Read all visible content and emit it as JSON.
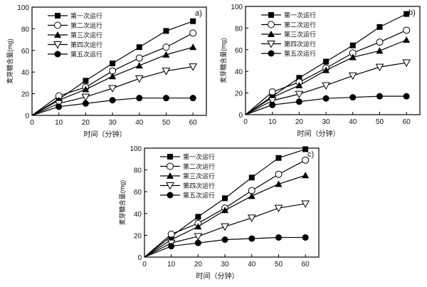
{
  "chart_data": [
    {
      "type": "line",
      "panel_label": "a)",
      "xlabel": "时间（分钟）",
      "ylabel": "麦芽糖含量(mg)",
      "xlim": [
        0,
        65
      ],
      "ylim": [
        0,
        100
      ],
      "xticks": [
        0,
        10,
        20,
        30,
        40,
        50,
        60
      ],
      "yticks": [
        0,
        20,
        40,
        60,
        80,
        100
      ],
      "legend_position": "top-left",
      "x": [
        0,
        10,
        20,
        30,
        40,
        50,
        60
      ],
      "series": [
        {
          "name": "第一次运行",
          "marker": "filled-square",
          "values": [
            0,
            15,
            32,
            48,
            63,
            78,
            87
          ]
        },
        {
          "name": "第二次运行",
          "marker": "open-circle",
          "values": [
            0,
            18,
            26,
            41,
            53,
            63,
            76
          ]
        },
        {
          "name": "第三次运行",
          "marker": "filled-triangle-up",
          "values": [
            0,
            14,
            24,
            36,
            46,
            56,
            63
          ]
        },
        {
          "name": "第四次运行",
          "marker": "open-triangle-down",
          "values": [
            0,
            11,
            17,
            25,
            34,
            41,
            45
          ]
        },
        {
          "name": "第五次运行",
          "marker": "filled-circle",
          "values": [
            0,
            8,
            11,
            14,
            16,
            16,
            16
          ]
        }
      ]
    },
    {
      "type": "line",
      "panel_label": "b)",
      "xlabel": "时间（分钟）",
      "ylabel": "麦芽糖含量(mg)",
      "xlim": [
        0,
        65
      ],
      "ylim": [
        0,
        100
      ],
      "xticks": [
        0,
        10,
        20,
        30,
        40,
        50,
        60
      ],
      "yticks": [
        0,
        20,
        40,
        60,
        80,
        100
      ],
      "legend_position": "top-left",
      "x": [
        0,
        10,
        20,
        30,
        40,
        50,
        60
      ],
      "series": [
        {
          "name": "第一次运行",
          "marker": "filled-square",
          "values": [
            0,
            17,
            34,
            49,
            64,
            81,
            93
          ]
        },
        {
          "name": "第二次运行",
          "marker": "open-circle",
          "values": [
            0,
            21,
            30,
            43,
            57,
            67,
            78
          ]
        },
        {
          "name": "第三次运行",
          "marker": "filled-triangle-up",
          "values": [
            0,
            16,
            27,
            41,
            53,
            59,
            69
          ]
        },
        {
          "name": "第四次运行",
          "marker": "open-triangle-down",
          "values": [
            0,
            13,
            19,
            27,
            36,
            44,
            48
          ]
        },
        {
          "name": "第五次运行",
          "marker": "filled-circle",
          "values": [
            0,
            9,
            12,
            15,
            16,
            17,
            17
          ]
        }
      ]
    },
    {
      "type": "line",
      "panel_label": "c)",
      "xlabel": "时间（分钟）",
      "ylabel": "麦芽糖含量(mg)",
      "xlim": [
        0,
        65
      ],
      "ylim": [
        0,
        100
      ],
      "xticks": [
        0,
        10,
        20,
        30,
        40,
        50,
        60
      ],
      "yticks": [
        0,
        20,
        40,
        60,
        80,
        100
      ],
      "legend_position": "top-left",
      "x": [
        0,
        10,
        20,
        30,
        40,
        50,
        60
      ],
      "series": [
        {
          "name": "第一次运行",
          "marker": "filled-square",
          "values": [
            0,
            19,
            37,
            54,
            73,
            91,
            99
          ]
        },
        {
          "name": "第二次运行",
          "marker": "open-circle",
          "values": [
            0,
            21,
            31,
            45,
            61,
            76,
            89
          ]
        },
        {
          "name": "第三次运行",
          "marker": "filled-triangle-up",
          "values": [
            0,
            16,
            28,
            43,
            56,
            67,
            75
          ]
        },
        {
          "name": "第四次运行",
          "marker": "open-triangle-down",
          "values": [
            0,
            13,
            19,
            28,
            36,
            45,
            49
          ]
        },
        {
          "name": "第五次运行",
          "marker": "filled-circle",
          "values": [
            0,
            10,
            13,
            16,
            17,
            18,
            18
          ]
        }
      ]
    }
  ]
}
